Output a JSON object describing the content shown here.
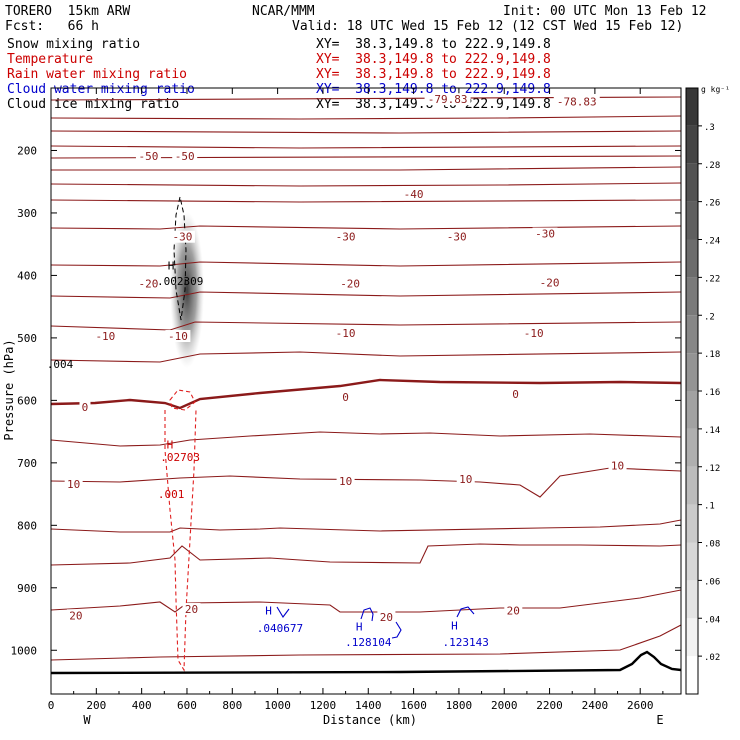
{
  "header": {
    "model": "TORERO  15km ARW",
    "forecast": "Fcst:   66 h",
    "org": "NCAR/MMM",
    "init": "Init: 00 UTC Mon 13 Feb 12",
    "valid": "Valid: 18 UTC Wed 15 Feb 12 (12 CST Wed 15 Feb 12)"
  },
  "fields": [
    {
      "name": "Snow mixing ratio",
      "xy": "XY=  38.3,149.8 to 222.9,149.8",
      "color": "#000000"
    },
    {
      "name": "Temperature",
      "xy": "XY=  38.3,149.8 to 222.9,149.8",
      "color": "#cc0000"
    },
    {
      "name": "Rain water mixing ratio",
      "xy": "XY=  38.3,149.8 to 222.9,149.8",
      "color": "#cc0000"
    },
    {
      "name": "Cloud water mixing ratio",
      "xy": "XY=  38.3,149.8 to 222.9,149.8",
      "color": "#0000cc"
    },
    {
      "name": "Cloud ice mixing ratio",
      "xy": "XY=  38.3,149.8 to 222.9,149.8",
      "color": "#000000"
    }
  ],
  "chart_data": {
    "type": "contour",
    "xlabel": "Distance (km)",
    "ylabel": "Pressure (hPa)",
    "xlim": [
      0,
      2780
    ],
    "ylim": [
      100,
      1070
    ],
    "x_ticks": [
      0,
      200,
      400,
      600,
      800,
      1000,
      1200,
      1400,
      1600,
      1800,
      2000,
      2200,
      2400,
      2600
    ],
    "y_ticks": [
      200,
      300,
      400,
      500,
      600,
      700,
      800,
      900,
      1000
    ],
    "x_end_labels": {
      "left": "W",
      "right": "E"
    },
    "colorbar": {
      "unit": "g kg⁻¹",
      "ticks": [
        ".02",
        ".04",
        ".06",
        ".08",
        ".1",
        ".12",
        ".14",
        ".16",
        ".18",
        ".2",
        ".22",
        ".24",
        ".26",
        ".28",
        ".3"
      ]
    },
    "temperature_labels": [
      {
        "text": "-78.83",
        "x": 2320,
        "p": 122
      },
      {
        "text": "-79.83",
        "x": 1750,
        "p": 118
      },
      {
        "text": "-50",
        "x": 430,
        "p": 209
      },
      {
        "text": "-50",
        "x": 590,
        "p": 209
      },
      {
        "text": "-40",
        "x": 1600,
        "p": 270
      },
      {
        "text": "-30",
        "x": 580,
        "p": 338
      },
      {
        "text": "-30",
        "x": 1300,
        "p": 338
      },
      {
        "text": "-30",
        "x": 1790,
        "p": 338
      },
      {
        "text": "-30",
        "x": 2180,
        "p": 333
      },
      {
        "text": "-20",
        "x": 430,
        "p": 413
      },
      {
        "text": "-20",
        "x": 1320,
        "p": 413
      },
      {
        "text": "-20",
        "x": 2200,
        "p": 411
      },
      {
        "text": "-10",
        "x": 240,
        "p": 497
      },
      {
        "text": "-10",
        "x": 560,
        "p": 497
      },
      {
        "text": "-10",
        "x": 1300,
        "p": 492
      },
      {
        "text": "-10",
        "x": 2130,
        "p": 492
      },
      {
        "text": "0",
        "x": 150,
        "p": 611
      },
      {
        "text": "0",
        "x": 1300,
        "p": 595
      },
      {
        "text": "0",
        "x": 2050,
        "p": 590
      },
      {
        "text": "10",
        "x": 100,
        "p": 734
      },
      {
        "text": "10",
        "x": 1300,
        "p": 729
      },
      {
        "text": "10",
        "x": 1830,
        "p": 726
      },
      {
        "text": "10",
        "x": 2500,
        "p": 704
      },
      {
        "text": "20",
        "x": 110,
        "p": 944
      },
      {
        "text": "20",
        "x": 620,
        "p": 934
      },
      {
        "text": "20",
        "x": 1480,
        "p": 947
      },
      {
        "text": "20",
        "x": 2040,
        "p": 936
      }
    ],
    "annotations": [
      {
        "text": "H",
        "x": 530,
        "p": 384,
        "field": "snow"
      },
      {
        "text": ".002309",
        "x": 570,
        "p": 409,
        "field": "snow"
      },
      {
        "text": ".004",
        "x": 40,
        "p": 542,
        "field": "snow"
      },
      {
        "text": "H",
        "x": 525,
        "p": 671,
        "field": "rain"
      },
      {
        "text": ".02703",
        "x": 570,
        "p": 691,
        "field": "rain"
      },
      {
        "text": ".001",
        "x": 530,
        "p": 750,
        "field": "rain"
      },
      {
        "text": "H",
        "x": 960,
        "p": 936,
        "field": "cloud_water"
      },
      {
        "text": ".040677",
        "x": 1010,
        "p": 964,
        "field": "cloud_water"
      },
      {
        "text": "H",
        "x": 1360,
        "p": 962,
        "field": "cloud_water"
      },
      {
        "text": ".128104",
        "x": 1400,
        "p": 987,
        "field": "cloud_water"
      },
      {
        "text": "H",
        "x": 1780,
        "p": 960,
        "field": "cloud_water"
      },
      {
        "text": ".123143",
        "x": 1830,
        "p": 987,
        "field": "cloud_water"
      }
    ]
  }
}
